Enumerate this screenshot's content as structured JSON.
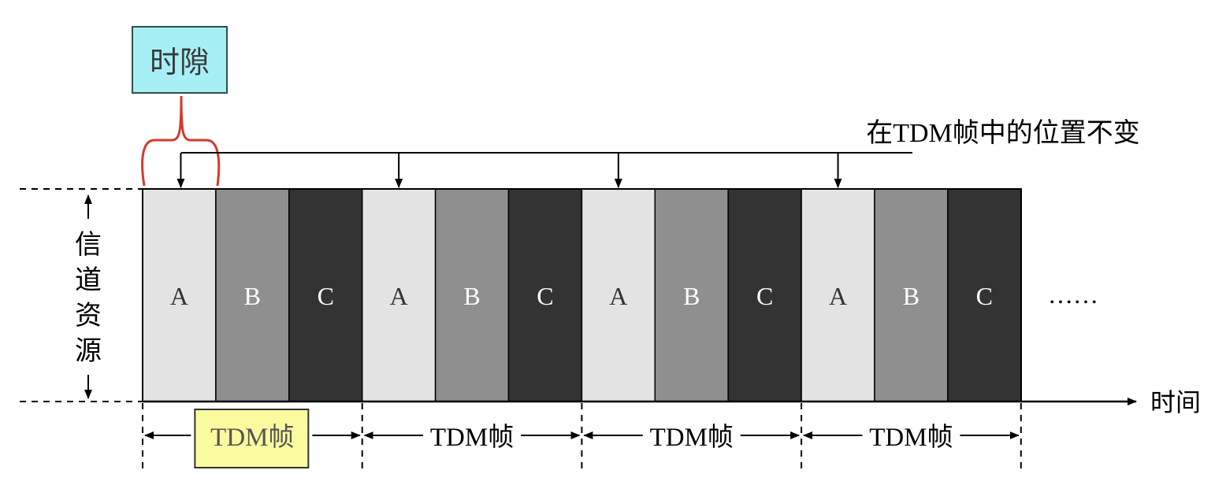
{
  "diagram": {
    "slot_label": "时隙",
    "position_note": "在TDM帧中的位置不变",
    "channel_resource_label": [
      "信",
      "道",
      "资",
      "源"
    ],
    "time_axis_label": "时间",
    "ellipsis": "……",
    "frame_label": "TDM帧",
    "frames": [
      {
        "slots": [
          "A",
          "B",
          "C"
        ],
        "label": "TDM帧"
      },
      {
        "slots": [
          "A",
          "B",
          "C"
        ],
        "label": "TDM帧"
      },
      {
        "slots": [
          "A",
          "B",
          "C"
        ],
        "label": "TDM帧"
      },
      {
        "slots": [
          "A",
          "B",
          "C"
        ],
        "label": "TDM帧"
      }
    ],
    "colors": {
      "slot_A": "#e3e3e3",
      "slot_B": "#8f8f8f",
      "slot_C": "#333333",
      "slot_label_box": "#a6f0f5",
      "frame_label_box": "#fafa9e",
      "brace": "#d23a2e"
    }
  }
}
